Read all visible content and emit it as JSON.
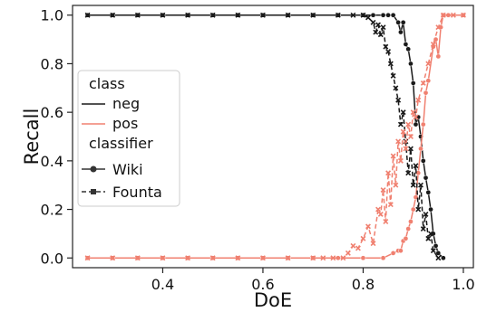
{
  "chart_data": {
    "type": "line",
    "xlabel": "DoE",
    "ylabel": "Recall",
    "xlim": [
      0.22,
      1.02
    ],
    "ylim": [
      -0.04,
      1.04
    ],
    "x_ticks": [
      0.4,
      0.6,
      0.8,
      1.0
    ],
    "x_tick_labels": [
      "0.4",
      "0.6",
      "0.8",
      "1.0"
    ],
    "y_ticks": [
      0.0,
      0.2,
      0.4,
      0.6,
      0.8,
      1.0
    ],
    "y_tick_labels": [
      "0.0",
      "0.2",
      "0.4",
      "0.6",
      "0.8",
      "1.0"
    ],
    "grid": false,
    "legend": {
      "placement": "center-left",
      "class_title": "class",
      "class_entries": [
        "neg",
        "pos"
      ],
      "classifier_title": "classifier",
      "classifier_entries": [
        "Wiki",
        "Founta"
      ]
    },
    "colors": {
      "neg": "#1a1a1a",
      "pos": "#f08070"
    },
    "series": [
      {
        "class": "neg",
        "classifier": "Wiki",
        "x": [
          0.25,
          0.3,
          0.35,
          0.4,
          0.45,
          0.5,
          0.55,
          0.6,
          0.65,
          0.7,
          0.75,
          0.8,
          0.82,
          0.84,
          0.85,
          0.86,
          0.87,
          0.875,
          0.88,
          0.885,
          0.89,
          0.895,
          0.9,
          0.905,
          0.91,
          0.915,
          0.92,
          0.925,
          0.93,
          0.935,
          0.94,
          0.945,
          0.95,
          0.96
        ],
        "y": [
          1.0,
          1.0,
          1.0,
          1.0,
          1.0,
          1.0,
          1.0,
          1.0,
          1.0,
          1.0,
          1.0,
          1.0,
          1.0,
          1.0,
          1.0,
          1.0,
          0.97,
          0.93,
          0.97,
          0.88,
          0.86,
          0.8,
          0.72,
          0.55,
          0.58,
          0.5,
          0.4,
          0.33,
          0.27,
          0.2,
          0.1,
          0.05,
          0.02,
          0.0
        ]
      },
      {
        "class": "pos",
        "classifier": "Wiki",
        "x": [
          0.25,
          0.3,
          0.35,
          0.4,
          0.45,
          0.5,
          0.55,
          0.6,
          0.65,
          0.7,
          0.75,
          0.8,
          0.84,
          0.86,
          0.87,
          0.875,
          0.88,
          0.885,
          0.89,
          0.895,
          0.9,
          0.905,
          0.91,
          0.915,
          0.92,
          0.925,
          0.93,
          0.94,
          0.945,
          0.95,
          0.955,
          0.96,
          0.97,
          1.0
        ],
        "y": [
          0.0,
          0.0,
          0.0,
          0.0,
          0.0,
          0.0,
          0.0,
          0.0,
          0.0,
          0.0,
          0.0,
          0.0,
          0.0,
          0.02,
          0.03,
          0.03,
          0.07,
          0.08,
          0.12,
          0.15,
          0.2,
          0.25,
          0.35,
          0.45,
          0.55,
          0.68,
          0.73,
          0.87,
          0.9,
          0.83,
          0.95,
          1.0,
          1.0,
          1.0
        ]
      },
      {
        "class": "neg",
        "classifier": "Founta",
        "x": [
          0.25,
          0.3,
          0.35,
          0.4,
          0.45,
          0.5,
          0.55,
          0.6,
          0.65,
          0.7,
          0.75,
          0.78,
          0.8,
          0.81,
          0.82,
          0.825,
          0.83,
          0.835,
          0.84,
          0.845,
          0.85,
          0.855,
          0.86,
          0.865,
          0.87,
          0.875,
          0.88,
          0.885,
          0.89,
          0.895,
          0.9,
          0.905,
          0.91,
          0.915,
          0.92,
          0.925,
          0.93,
          0.935,
          0.94,
          0.95
        ],
        "y": [
          1.0,
          1.0,
          1.0,
          1.0,
          1.0,
          1.0,
          1.0,
          1.0,
          1.0,
          1.0,
          1.0,
          1.0,
          1.0,
          0.99,
          0.97,
          0.93,
          0.96,
          0.92,
          0.95,
          0.87,
          0.85,
          0.8,
          0.75,
          0.7,
          0.65,
          0.55,
          0.6,
          0.48,
          0.35,
          0.45,
          0.3,
          0.38,
          0.2,
          0.3,
          0.12,
          0.18,
          0.08,
          0.1,
          0.03,
          0.0
        ]
      },
      {
        "class": "pos",
        "classifier": "Founta",
        "x": [
          0.25,
          0.3,
          0.35,
          0.4,
          0.45,
          0.5,
          0.55,
          0.6,
          0.65,
          0.7,
          0.72,
          0.74,
          0.76,
          0.77,
          0.78,
          0.79,
          0.8,
          0.81,
          0.82,
          0.83,
          0.835,
          0.84,
          0.845,
          0.85,
          0.855,
          0.86,
          0.865,
          0.87,
          0.875,
          0.88,
          0.885,
          0.89,
          0.895,
          0.9,
          0.905,
          0.91,
          0.92,
          0.93,
          0.94,
          0.95,
          0.96,
          0.98,
          1.0
        ],
        "y": [
          0.0,
          0.0,
          0.0,
          0.0,
          0.0,
          0.0,
          0.0,
          0.0,
          0.0,
          0.0,
          0.0,
          0.0,
          0.0,
          0.02,
          0.05,
          0.04,
          0.08,
          0.13,
          0.06,
          0.2,
          0.18,
          0.28,
          0.15,
          0.35,
          0.22,
          0.42,
          0.3,
          0.48,
          0.4,
          0.52,
          0.45,
          0.55,
          0.5,
          0.6,
          0.58,
          0.65,
          0.72,
          0.8,
          0.88,
          0.95,
          1.0,
          1.0,
          1.0
        ]
      }
    ]
  }
}
